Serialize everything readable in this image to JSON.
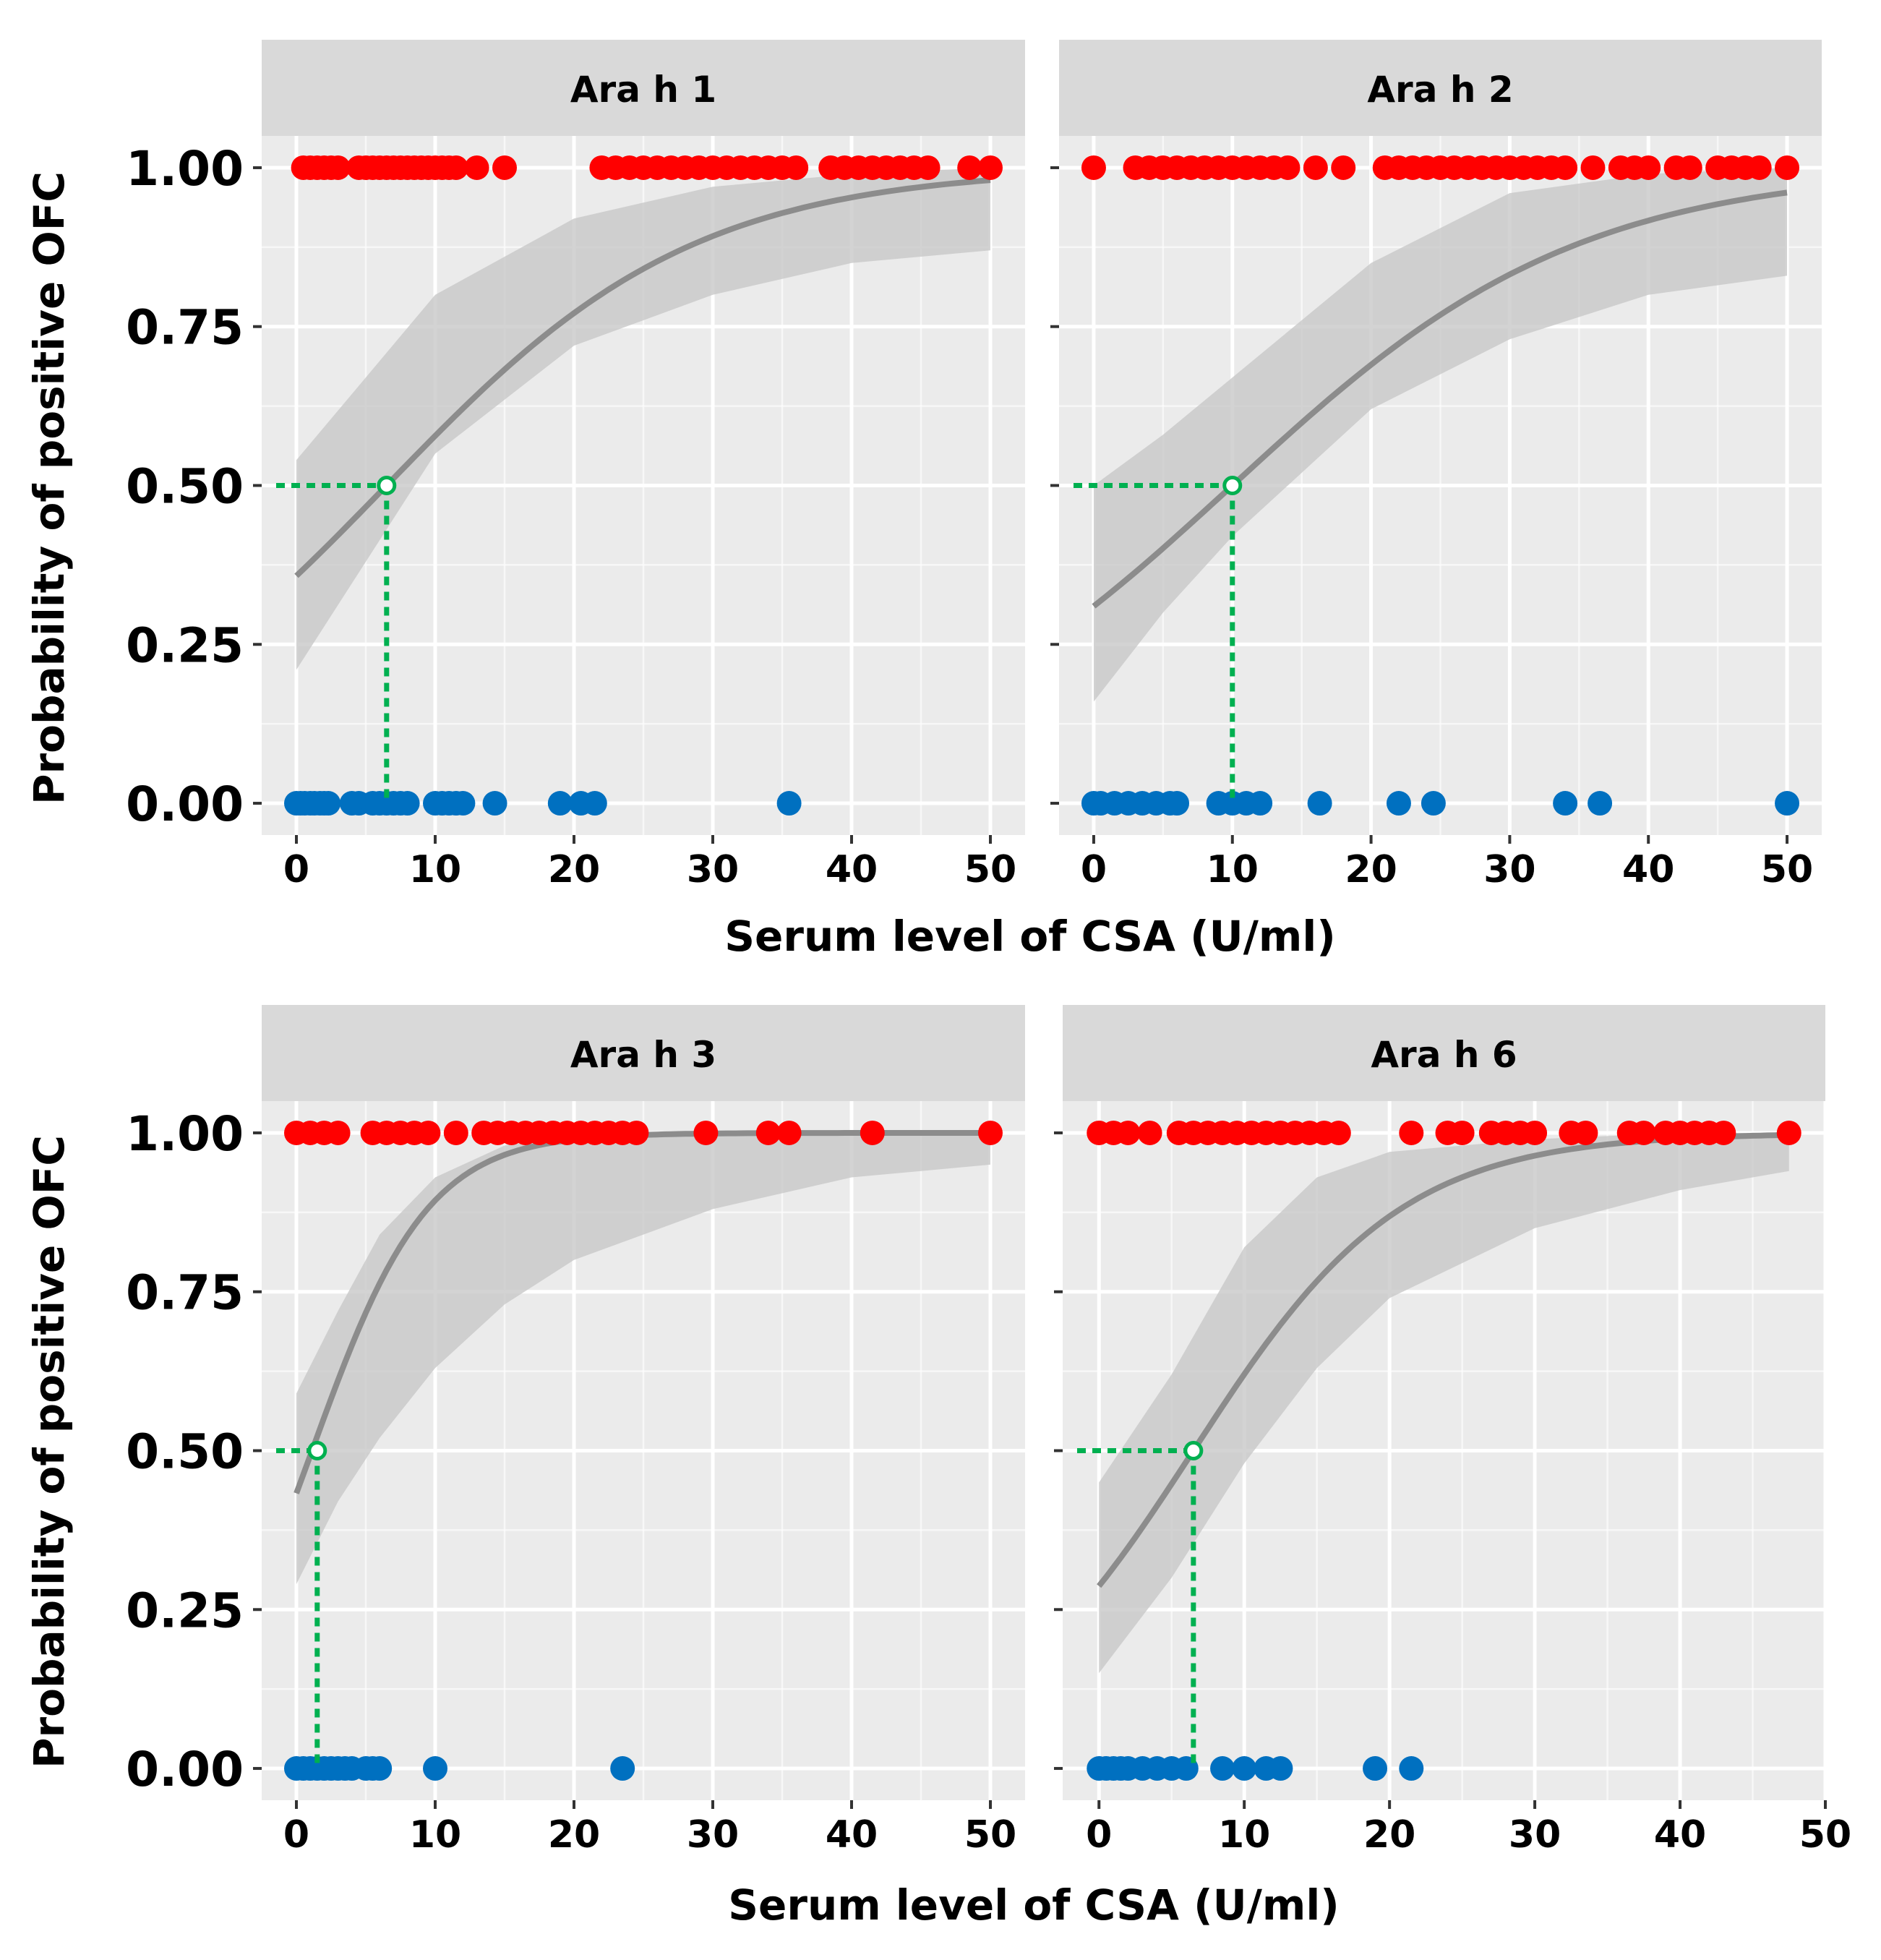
{
  "figure": {
    "y_axis_title": "Probability of positive OFC",
    "x_axis_title": "Serum level of CSA (U/ml)"
  },
  "colors": {
    "panel_bg": "#ebebeb",
    "strip_bg": "#d9d9d9",
    "grid": "#ffffff",
    "positive": "#ff0000",
    "negative": "#0070c0",
    "fit_line": "#8c8c8c",
    "ci_band": "#c8c8c8",
    "cutoff": "#00b050"
  },
  "chart_data": [
    {
      "type": "scatter",
      "title": "Ara h 1",
      "xlabel": "Serum level of CSA (U/ml)",
      "ylabel": "Probability of positive OFC",
      "xlim": [
        -2.5,
        52.5
      ],
      "ylim": [
        -0.05,
        1.05
      ],
      "x_ticks": [
        0,
        10,
        20,
        30,
        40,
        50
      ],
      "y_ticks": [
        0,
        0.25,
        0.5,
        0.75,
        1.0
      ],
      "y_tick_labels": [
        "0.00",
        "0.25",
        "0.50",
        "0.75",
        "1.00"
      ],
      "grid": true,
      "legend": "none",
      "cutoff": {
        "x": 6.5,
        "y": 0.5
      },
      "logistic": {
        "b0": -0.585,
        "b1": 0.09
      },
      "ci_lower": [
        [
          0,
          0.21
        ],
        [
          5,
          0.38
        ],
        [
          10,
          0.55
        ],
        [
          20,
          0.72
        ],
        [
          30,
          0.8
        ],
        [
          40,
          0.85
        ],
        [
          50,
          0.87
        ]
      ],
      "ci_upper": [
        [
          0,
          0.54
        ],
        [
          5,
          0.67
        ],
        [
          10,
          0.8
        ],
        [
          20,
          0.92
        ],
        [
          30,
          0.97
        ],
        [
          40,
          0.99
        ],
        [
          50,
          1.0
        ]
      ],
      "points_positive": [
        0.5,
        1,
        1.5,
        2,
        2.5,
        3,
        4.5,
        5,
        5.5,
        6,
        6.5,
        7,
        7.5,
        8,
        8.5,
        9,
        9.5,
        10,
        10.5,
        11,
        11.5,
        13,
        15,
        22,
        23,
        24,
        25,
        26,
        27,
        28,
        29,
        30,
        31,
        32,
        33,
        34,
        35,
        36,
        38.5,
        39.5,
        40.5,
        41.5,
        42.5,
        43.5,
        44.5,
        45.5,
        48.5,
        50
      ],
      "points_negative": [
        0,
        0.3,
        0.6,
        1,
        1.3,
        1.7,
        2,
        2.3,
        4,
        4.5,
        5.5,
        6,
        6.5,
        7,
        7.5,
        8,
        10,
        10.5,
        11,
        11.5,
        12,
        14.3,
        19,
        20.5,
        21.5,
        35.5
      ]
    },
    {
      "type": "scatter",
      "title": "Ara h 2",
      "xlabel": "Serum level of CSA (U/ml)",
      "ylabel": "Probability of positive OFC",
      "xlim": [
        -2.5,
        52.5
      ],
      "ylim": [
        -0.05,
        1.05
      ],
      "x_ticks": [
        0,
        10,
        20,
        30,
        40,
        50
      ],
      "y_ticks": [
        0,
        0.25,
        0.5,
        0.75,
        1.0
      ],
      "y_tick_labels": [
        "0.00",
        "0.25",
        "0.50",
        "0.75",
        "1.00"
      ],
      "grid": true,
      "legend": "none",
      "cutoff": {
        "x": 10,
        "y": 0.5
      },
      "logistic": {
        "b0": -0.8,
        "b1": 0.08
      },
      "ci_lower": [
        [
          0,
          0.16
        ],
        [
          5,
          0.3
        ],
        [
          10,
          0.42
        ],
        [
          20,
          0.62
        ],
        [
          30,
          0.73
        ],
        [
          40,
          0.8
        ],
        [
          50,
          0.83
        ]
      ],
      "ci_upper": [
        [
          0,
          0.5
        ],
        [
          5,
          0.58
        ],
        [
          10,
          0.67
        ],
        [
          20,
          0.85
        ],
        [
          30,
          0.96
        ],
        [
          40,
          0.99
        ],
        [
          50,
          1.0
        ]
      ],
      "points_positive": [
        0,
        3,
        4,
        5,
        6,
        7,
        8,
        9,
        10,
        11,
        12,
        13,
        14,
        16,
        18,
        21,
        22,
        23,
        24,
        25,
        26,
        27,
        28,
        29,
        30,
        31,
        32,
        33,
        34,
        36,
        38,
        39,
        40,
        42,
        43,
        45,
        46,
        47,
        48,
        50
      ],
      "points_negative": [
        0,
        0.5,
        1.5,
        2.5,
        3.5,
        4.5,
        5.5,
        6,
        9,
        10,
        11,
        12,
        16.3,
        22,
        24.5,
        34,
        36.5,
        50
      ]
    },
    {
      "type": "scatter",
      "title": "Ara h 3",
      "xlabel": "Serum level of CSA (U/ml)",
      "ylabel": "Probability of positive OFC",
      "xlim": [
        -2.5,
        52.5
      ],
      "ylim": [
        -0.05,
        1.05
      ],
      "x_ticks": [
        0,
        10,
        20,
        30,
        40,
        50
      ],
      "y_ticks": [
        0,
        0.25,
        0.5,
        0.75,
        1.0
      ],
      "y_tick_labels": [
        "0.00",
        "0.25",
        "0.50",
        "0.75",
        "1.00"
      ],
      "grid": true,
      "legend": "none",
      "cutoff": {
        "x": 1.5,
        "y": 0.5
      },
      "logistic": {
        "b0": -0.27,
        "b1": 0.24
      },
      "ci_lower": [
        [
          0,
          0.29
        ],
        [
          3,
          0.42
        ],
        [
          6,
          0.52
        ],
        [
          10,
          0.63
        ],
        [
          15,
          0.73
        ],
        [
          20,
          0.8
        ],
        [
          30,
          0.88
        ],
        [
          40,
          0.93
        ],
        [
          50,
          0.95
        ]
      ],
      "ci_upper": [
        [
          0,
          0.59
        ],
        [
          3,
          0.72
        ],
        [
          6,
          0.84
        ],
        [
          10,
          0.93
        ],
        [
          15,
          0.98
        ],
        [
          20,
          0.995
        ],
        [
          30,
          1.0
        ],
        [
          40,
          1.0
        ],
        [
          50,
          1.0
        ]
      ],
      "points_positive": [
        0,
        1,
        2,
        3,
        5.5,
        6.5,
        7.5,
        8.5,
        9.5,
        11.5,
        13.5,
        14.5,
        15.5,
        16.5,
        17.5,
        18.5,
        19.5,
        20.5,
        21.5,
        22.5,
        23.5,
        24.5,
        29.5,
        34,
        35.5,
        41.5,
        50
      ],
      "points_negative": [
        0,
        0.5,
        1,
        1.5,
        2,
        2.5,
        3,
        3.5,
        4,
        5,
        5.5,
        6,
        10,
        23.5
      ]
    },
    {
      "type": "scatter",
      "title": "Ara h 6",
      "xlabel": "Serum level of CSA (U/ml)",
      "ylabel": "Probability of positive OFC",
      "xlim": [
        -2.5,
        50
      ],
      "ylim": [
        -0.05,
        1.05
      ],
      "x_ticks": [
        0,
        10,
        20,
        30,
        40,
        50
      ],
      "y_ticks": [
        0,
        0.25,
        0.5,
        0.75,
        1.0
      ],
      "y_tick_labels": [
        "0.00",
        "0.25",
        "0.50",
        "0.75",
        "1.00"
      ],
      "grid": true,
      "legend": "none",
      "cutoff": {
        "x": 6.5,
        "y": 0.5
      },
      "logistic": {
        "b0": -0.91,
        "b1": 0.14
      },
      "ci_lower": [
        [
          0,
          0.15
        ],
        [
          5,
          0.3
        ],
        [
          10,
          0.48
        ],
        [
          15,
          0.63
        ],
        [
          20,
          0.74
        ],
        [
          30,
          0.85
        ],
        [
          40,
          0.91
        ],
        [
          47.5,
          0.94
        ]
      ],
      "ci_upper": [
        [
          0,
          0.45
        ],
        [
          5,
          0.62
        ],
        [
          10,
          0.82
        ],
        [
          15,
          0.93
        ],
        [
          20,
          0.97
        ],
        [
          30,
          0.99
        ],
        [
          40,
          1.0
        ],
        [
          47.5,
          1.0
        ]
      ],
      "points_positive": [
        0,
        1,
        2,
        3.5,
        5.5,
        6.5,
        7.5,
        8.5,
        9.5,
        10.5,
        11.5,
        12.5,
        13.5,
        14.5,
        15.5,
        16.5,
        21.5,
        24,
        25,
        27,
        28,
        29,
        30,
        32.5,
        33.5,
        36.5,
        37.5,
        39,
        40,
        41,
        42,
        43,
        47.5
      ],
      "points_negative": [
        0,
        0.5,
        1,
        1.5,
        2,
        3,
        4,
        5,
        6,
        8.5,
        10,
        11.5,
        12.5,
        19,
        21.5
      ]
    }
  ]
}
